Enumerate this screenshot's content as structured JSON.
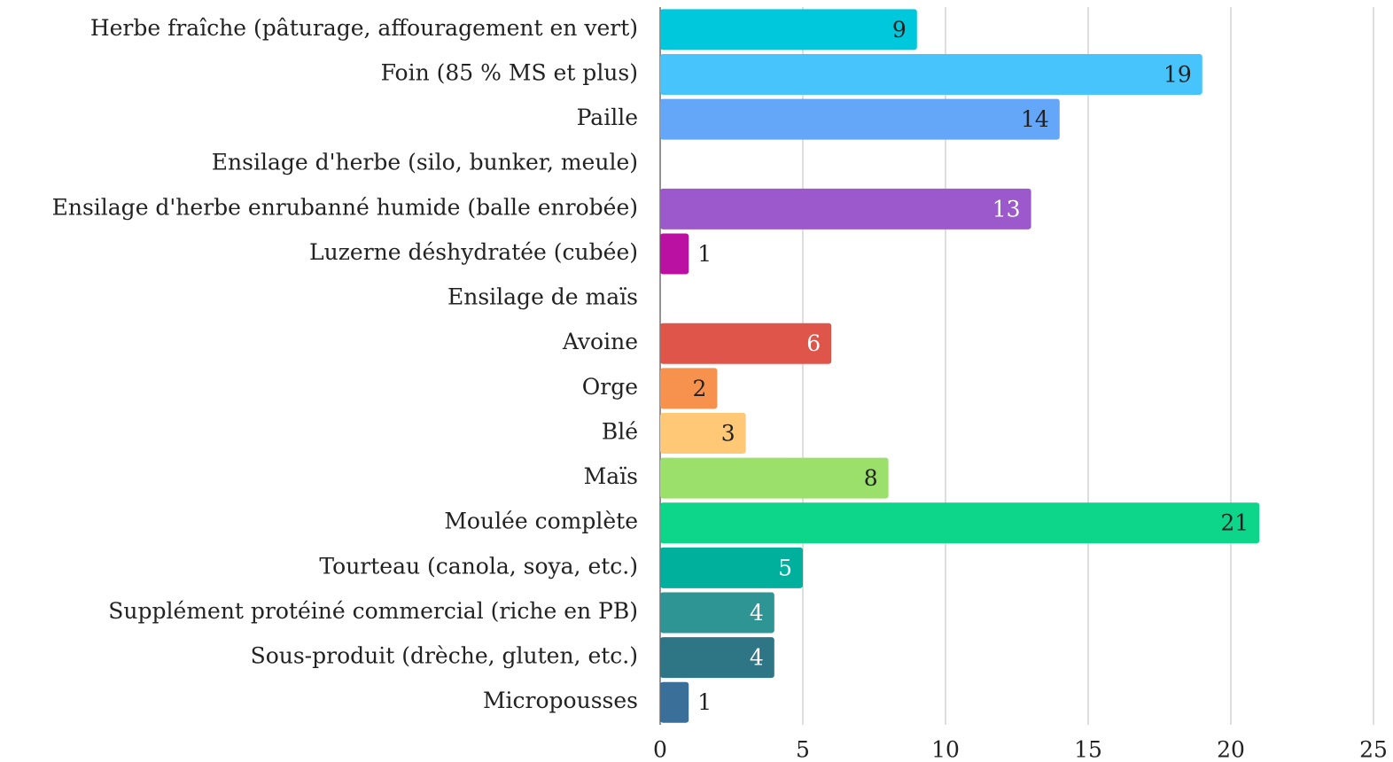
{
  "chart_data": {
    "type": "bar",
    "orientation": "horizontal",
    "categories": [
      "Herbe fraîche (pâturage, affouragement en vert)",
      "Foin (85 % MS et plus)",
      "Paille",
      "Ensilage d'herbe (silo, bunker, meule)",
      "Ensilage d'herbe enrubanné humide (balle enrobée)",
      "Luzerne déshydratée (cubée)",
      "Ensilage de maïs",
      "Avoine",
      "Orge",
      "Blé",
      "Maïs",
      "Moulée complète",
      "Tourteau (canola, soya, etc.)",
      "Supplément protéiné commercial (riche en PB)",
      "Sous-produit (drèche, gluten, etc.)",
      "Micropousses"
    ],
    "values": [
      9,
      19,
      14,
      null,
      13,
      1,
      null,
      6,
      2,
      3,
      8,
      21,
      5,
      4,
      4,
      1
    ],
    "colors": [
      "#00c8dc",
      "#48c4fc",
      "#64a6f8",
      "#888888",
      "#9b59cb",
      "#bb11a3",
      "#888888",
      "#e05549",
      "#f7924e",
      "#fec876",
      "#9be06a",
      "#0dd68a",
      "#00b09c",
      "#2e9494",
      "#2e7585",
      "#3a6f9a"
    ],
    "xlim": [
      0,
      25
    ],
    "xticks": [
      0,
      5,
      10,
      15,
      20,
      25
    ],
    "grid": true
  }
}
